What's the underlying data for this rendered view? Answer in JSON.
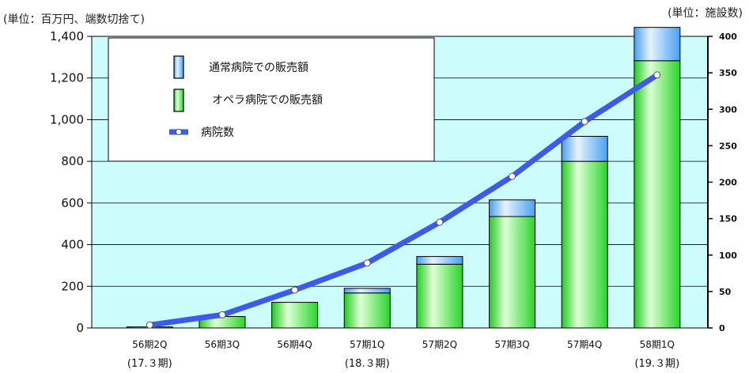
{
  "chart_data": {
    "type": "bar",
    "unit_left": "(単位：百万円、端数切捨て)",
    "unit_right": "(単位：施設数)",
    "categories": [
      "56期2Q",
      "56期3Q",
      "56期4Q",
      "57期1Q",
      "57期2Q",
      "57期3Q",
      "57期4Q",
      "58期1Q"
    ],
    "fiscal_labels": [
      {
        "category": "56期2Q",
        "label": "(17.３期)"
      },
      {
        "category": "57期1Q",
        "label": "(18.３期)"
      },
      {
        "category": "58期1Q",
        "label": "(19.３期)"
      }
    ],
    "y_left": {
      "min": 0,
      "max": 1400,
      "ticks": [
        0,
        200,
        400,
        600,
        800,
        1000,
        1200,
        1400
      ],
      "tick_labels": [
        "0",
        "200",
        "400",
        "600",
        "800",
        "1,000",
        "1,200",
        "1,400"
      ]
    },
    "y_right": {
      "min": 0,
      "max": 400,
      "ticks": [
        0,
        50,
        100,
        150,
        200,
        250,
        300,
        350,
        400
      ],
      "tick_labels": [
        "0",
        "50",
        "100",
        "150",
        "200",
        "250",
        "300",
        "350",
        "400"
      ]
    },
    "series": [
      {
        "name": "オペラ病院での販売額",
        "type": "bar",
        "axis": "left",
        "color": "#44ee44",
        "values": [
          5,
          55,
          123,
          168,
          306,
          535,
          800,
          1283
        ]
      },
      {
        "name": "通常病院での販売額",
        "type": "bar-stacked",
        "axis": "left",
        "color": "#55aaff",
        "values": [
          0,
          0,
          0,
          22,
          37,
          80,
          120,
          160
        ]
      },
      {
        "name": "病院数",
        "type": "line",
        "axis": "right",
        "color": "#3d5be8",
        "values": [
          4,
          18,
          52,
          89,
          145,
          208,
          283,
          347
        ]
      }
    ],
    "grid": true,
    "legend_position": "top-left"
  }
}
